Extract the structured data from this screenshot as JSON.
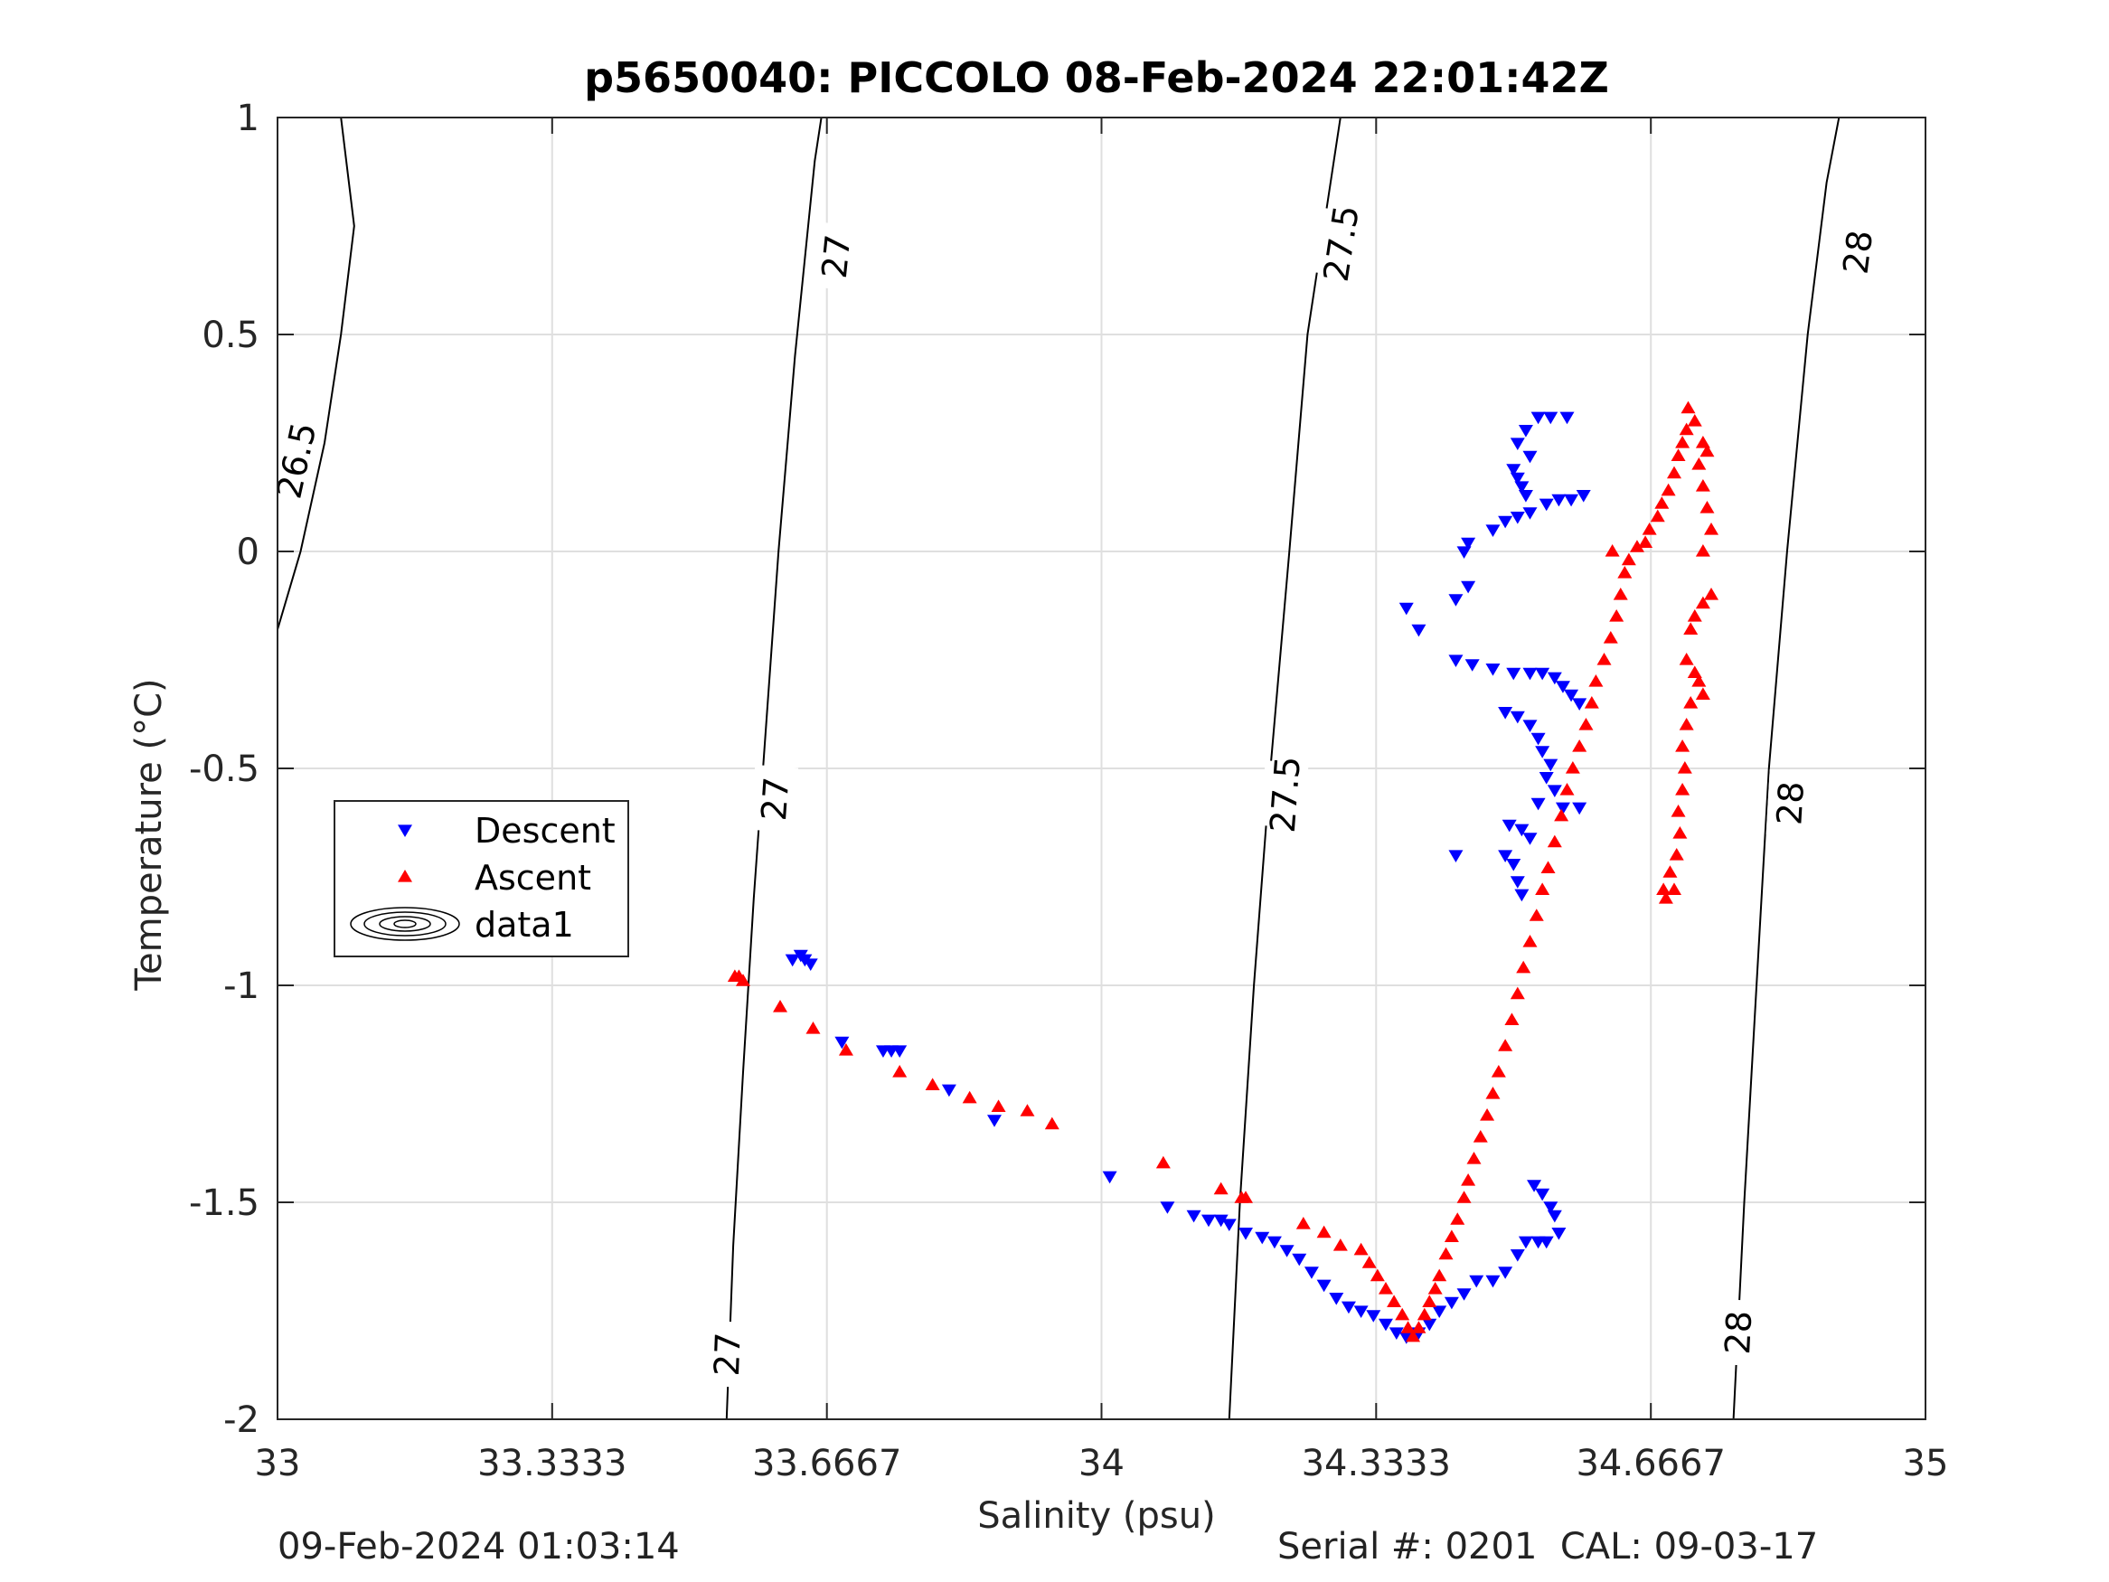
{
  "footer": {
    "left": "09-Feb-2024 01:03:14",
    "right": "Serial #: 0201  CAL: 09-03-17"
  },
  "chart_data": {
    "type": "scatter",
    "title": "p5650040: PICCOLO 08-Feb-2024 22:01:42Z",
    "xlabel": "Salinity (psu)",
    "ylabel": "Temperature (°C)",
    "xlim": [
      33,
      35
    ],
    "ylim": [
      -2,
      1
    ],
    "xticks": [
      33,
      33.3333,
      33.6667,
      34,
      34.3333,
      34.6667,
      35
    ],
    "xtick_labels": [
      "33",
      "33.3333",
      "33.6667",
      "34",
      "34.3333",
      "34.6667",
      "35"
    ],
    "yticks": [
      -2,
      -1.5,
      -1,
      -0.5,
      0,
      0.5,
      1
    ],
    "ytick_labels": [
      "-2",
      "-1.5",
      "-1",
      "-0.5",
      "0",
      "0.5",
      "1"
    ],
    "grid": true,
    "legend_position": "middle-left",
    "legend": [
      {
        "label": "Descent",
        "marker": "triangle-down",
        "color": "#0000ff"
      },
      {
        "label": "Ascent",
        "marker": "triangle-up",
        "color": "#ff0000"
      },
      {
        "label": "data1",
        "marker": "contour",
        "color": "#000000"
      }
    ],
    "isopycnals": [
      {
        "label": "26.5",
        "points": [
          [
            33.0,
            -0.18
          ],
          [
            33.028,
            0.0
          ],
          [
            33.057,
            0.25
          ],
          [
            33.077,
            0.5
          ],
          [
            33.093,
            0.75
          ],
          [
            33.077,
            1.0
          ]
        ],
        "label_positions": [
          [
            33.022,
            0.21
          ]
        ]
      },
      {
        "label": "27",
        "points": [
          [
            33.545,
            -2.0
          ],
          [
            33.553,
            -1.6
          ],
          [
            33.565,
            -1.2
          ],
          [
            33.578,
            -0.8
          ],
          [
            33.593,
            -0.4
          ],
          [
            33.608,
            0.0
          ],
          [
            33.628,
            0.45
          ],
          [
            33.652,
            0.9
          ],
          [
            33.66,
            1.0
          ]
        ],
        "label_positions": [
          [
            33.545,
            -1.85
          ],
          [
            33.603,
            -0.57
          ],
          [
            33.677,
            0.68
          ]
        ]
      },
      {
        "label": "27.5",
        "points": [
          [
            34.155,
            -2.0
          ],
          [
            34.168,
            -1.5
          ],
          [
            34.185,
            -1.0
          ],
          [
            34.205,
            -0.5
          ],
          [
            34.228,
            0.0
          ],
          [
            34.25,
            0.5
          ],
          [
            34.29,
            1.0
          ]
        ],
        "label_positions": [
          [
            34.222,
            -0.56
          ],
          [
            34.29,
            0.71
          ]
        ]
      },
      {
        "label": "28",
        "points": [
          [
            34.767,
            -2.0
          ],
          [
            34.78,
            -1.5
          ],
          [
            34.795,
            -1.0
          ],
          [
            34.81,
            -0.5
          ],
          [
            34.832,
            0.0
          ],
          [
            34.857,
            0.5
          ],
          [
            34.88,
            0.85
          ],
          [
            34.895,
            1.0
          ]
        ],
        "label_positions": [
          [
            34.772,
            -1.8
          ],
          [
            34.835,
            -0.58
          ],
          [
            34.917,
            0.69
          ]
        ]
      }
    ],
    "series": [
      {
        "name": "Descent",
        "marker": "triangle-down",
        "color": "#0000ff",
        "points": [
          [
            33.625,
            -0.94
          ],
          [
            33.64,
            -0.94
          ],
          [
            33.647,
            -0.95
          ],
          [
            33.635,
            -0.93
          ],
          [
            33.685,
            -1.13
          ],
          [
            33.735,
            -1.15
          ],
          [
            33.745,
            -1.15
          ],
          [
            33.755,
            -1.15
          ],
          [
            33.815,
            -1.24
          ],
          [
            33.87,
            -1.31
          ],
          [
            34.01,
            -1.44
          ],
          [
            34.08,
            -1.51
          ],
          [
            34.112,
            -1.53
          ],
          [
            34.13,
            -1.54
          ],
          [
            34.145,
            -1.54
          ],
          [
            34.155,
            -1.55
          ],
          [
            34.175,
            -1.57
          ],
          [
            34.195,
            -1.58
          ],
          [
            34.21,
            -1.59
          ],
          [
            34.225,
            -1.61
          ],
          [
            34.24,
            -1.63
          ],
          [
            34.255,
            -1.66
          ],
          [
            34.27,
            -1.69
          ],
          [
            34.285,
            -1.72
          ],
          [
            34.3,
            -1.74
          ],
          [
            34.315,
            -1.75
          ],
          [
            34.33,
            -1.76
          ],
          [
            34.345,
            -1.78
          ],
          [
            34.358,
            -1.8
          ],
          [
            34.37,
            -1.81
          ],
          [
            34.385,
            -1.8
          ],
          [
            34.398,
            -1.78
          ],
          [
            34.41,
            -1.75
          ],
          [
            34.425,
            -1.73
          ],
          [
            34.44,
            -1.71
          ],
          [
            34.455,
            -1.68
          ],
          [
            34.475,
            -1.68
          ],
          [
            34.49,
            -1.66
          ],
          [
            34.505,
            -1.62
          ],
          [
            34.515,
            -1.59
          ],
          [
            34.53,
            -1.59
          ],
          [
            34.54,
            -1.59
          ],
          [
            34.555,
            -1.57
          ],
          [
            34.55,
            -1.53
          ],
          [
            34.545,
            -1.51
          ],
          [
            34.535,
            -1.48
          ],
          [
            34.525,
            -1.46
          ],
          [
            34.37,
            -0.13
          ],
          [
            34.385,
            -0.18
          ],
          [
            34.43,
            -0.25
          ],
          [
            34.45,
            -0.26
          ],
          [
            34.475,
            -0.27
          ],
          [
            34.5,
            -0.28
          ],
          [
            34.52,
            -0.28
          ],
          [
            34.535,
            -0.28
          ],
          [
            34.55,
            -0.29
          ],
          [
            34.56,
            -0.31
          ],
          [
            34.57,
            -0.33
          ],
          [
            34.58,
            -0.35
          ],
          [
            34.49,
            -0.37
          ],
          [
            34.505,
            -0.38
          ],
          [
            34.52,
            -0.4
          ],
          [
            34.53,
            -0.43
          ],
          [
            34.535,
            -0.46
          ],
          [
            34.545,
            -0.49
          ],
          [
            34.54,
            -0.52
          ],
          [
            34.55,
            -0.55
          ],
          [
            34.53,
            -0.58
          ],
          [
            34.56,
            -0.59
          ],
          [
            34.58,
            -0.59
          ],
          [
            34.495,
            -0.63
          ],
          [
            34.51,
            -0.64
          ],
          [
            34.52,
            -0.66
          ],
          [
            34.43,
            -0.7
          ],
          [
            34.49,
            -0.7
          ],
          [
            34.5,
            -0.72
          ],
          [
            34.505,
            -0.76
          ],
          [
            34.51,
            -0.79
          ],
          [
            34.43,
            -0.11
          ],
          [
            34.445,
            -0.08
          ],
          [
            34.44,
            0.0
          ],
          [
            34.445,
            0.02
          ],
          [
            34.475,
            0.05
          ],
          [
            34.49,
            0.07
          ],
          [
            34.505,
            0.08
          ],
          [
            34.52,
            0.09
          ],
          [
            34.54,
            0.11
          ],
          [
            34.555,
            0.12
          ],
          [
            34.57,
            0.12
          ],
          [
            34.585,
            0.13
          ],
          [
            34.5,
            0.19
          ],
          [
            34.505,
            0.17
          ],
          [
            34.51,
            0.15
          ],
          [
            34.515,
            0.13
          ],
          [
            34.505,
            0.25
          ],
          [
            34.515,
            0.28
          ],
          [
            34.53,
            0.31
          ],
          [
            34.545,
            0.31
          ],
          [
            34.565,
            0.31
          ],
          [
            34.52,
            0.22
          ]
        ]
      },
      {
        "name": "Ascent",
        "marker": "triangle-up",
        "color": "#ff0000",
        "points": [
          [
            33.555,
            -0.98
          ],
          [
            33.565,
            -0.99
          ],
          [
            33.56,
            -0.98
          ],
          [
            33.61,
            -1.05
          ],
          [
            33.65,
            -1.1
          ],
          [
            33.69,
            -1.15
          ],
          [
            33.755,
            -1.2
          ],
          [
            33.795,
            -1.23
          ],
          [
            33.84,
            -1.26
          ],
          [
            33.875,
            -1.28
          ],
          [
            33.91,
            -1.29
          ],
          [
            33.94,
            -1.32
          ],
          [
            34.075,
            -1.41
          ],
          [
            34.145,
            -1.47
          ],
          [
            34.17,
            -1.49
          ],
          [
            34.175,
            -1.49
          ],
          [
            34.245,
            -1.55
          ],
          [
            34.27,
            -1.57
          ],
          [
            34.29,
            -1.6
          ],
          [
            34.315,
            -1.61
          ],
          [
            34.325,
            -1.64
          ],
          [
            34.335,
            -1.67
          ],
          [
            34.345,
            -1.7
          ],
          [
            34.355,
            -1.73
          ],
          [
            34.365,
            -1.76
          ],
          [
            34.372,
            -1.79
          ],
          [
            34.378,
            -1.81
          ],
          [
            34.385,
            -1.79
          ],
          [
            34.392,
            -1.76
          ],
          [
            34.398,
            -1.73
          ],
          [
            34.405,
            -1.7
          ],
          [
            34.41,
            -1.67
          ],
          [
            34.418,
            -1.62
          ],
          [
            34.425,
            -1.58
          ],
          [
            34.432,
            -1.54
          ],
          [
            34.44,
            -1.49
          ],
          [
            34.445,
            -1.45
          ],
          [
            34.452,
            -1.4
          ],
          [
            34.46,
            -1.35
          ],
          [
            34.468,
            -1.3
          ],
          [
            34.475,
            -1.25
          ],
          [
            34.482,
            -1.2
          ],
          [
            34.49,
            -1.14
          ],
          [
            34.498,
            -1.08
          ],
          [
            34.505,
            -1.02
          ],
          [
            34.512,
            -0.96
          ],
          [
            34.52,
            -0.9
          ],
          [
            34.528,
            -0.84
          ],
          [
            34.535,
            -0.78
          ],
          [
            34.542,
            -0.73
          ],
          [
            34.55,
            -0.67
          ],
          [
            34.558,
            -0.61
          ],
          [
            34.565,
            -0.55
          ],
          [
            34.572,
            -0.5
          ],
          [
            34.58,
            -0.45
          ],
          [
            34.588,
            -0.4
          ],
          [
            34.595,
            -0.35
          ],
          [
            34.6,
            -0.3
          ],
          [
            34.61,
            -0.25
          ],
          [
            34.618,
            -0.2
          ],
          [
            34.625,
            -0.15
          ],
          [
            34.63,
            -0.1
          ],
          [
            34.635,
            -0.05
          ],
          [
            34.64,
            -0.02
          ],
          [
            34.62,
            0.0
          ],
          [
            34.65,
            0.01
          ],
          [
            34.66,
            0.02
          ],
          [
            34.665,
            0.05
          ],
          [
            34.675,
            0.08
          ],
          [
            34.68,
            0.11
          ],
          [
            34.688,
            0.14
          ],
          [
            34.695,
            0.18
          ],
          [
            34.7,
            0.22
          ],
          [
            34.705,
            0.25
          ],
          [
            34.71,
            0.28
          ],
          [
            34.712,
            0.33
          ],
          [
            34.72,
            0.3
          ],
          [
            34.73,
            0.25
          ],
          [
            34.735,
            0.23
          ],
          [
            34.725,
            0.2
          ],
          [
            34.73,
            0.15
          ],
          [
            34.735,
            0.1
          ],
          [
            34.74,
            0.05
          ],
          [
            34.73,
            0.0
          ],
          [
            34.74,
            -0.1
          ],
          [
            34.73,
            -0.12
          ],
          [
            34.72,
            -0.15
          ],
          [
            34.715,
            -0.18
          ],
          [
            34.71,
            -0.25
          ],
          [
            34.72,
            -0.28
          ],
          [
            34.725,
            -0.3
          ],
          [
            34.73,
            -0.33
          ],
          [
            34.715,
            -0.35
          ],
          [
            34.71,
            -0.4
          ],
          [
            34.705,
            -0.45
          ],
          [
            34.708,
            -0.5
          ],
          [
            34.705,
            -0.55
          ],
          [
            34.7,
            -0.6
          ],
          [
            34.702,
            -0.65
          ],
          [
            34.698,
            -0.7
          ],
          [
            34.69,
            -0.74
          ],
          [
            34.695,
            -0.78
          ],
          [
            34.685,
            -0.8
          ],
          [
            34.682,
            -0.78
          ]
        ]
      }
    ]
  }
}
